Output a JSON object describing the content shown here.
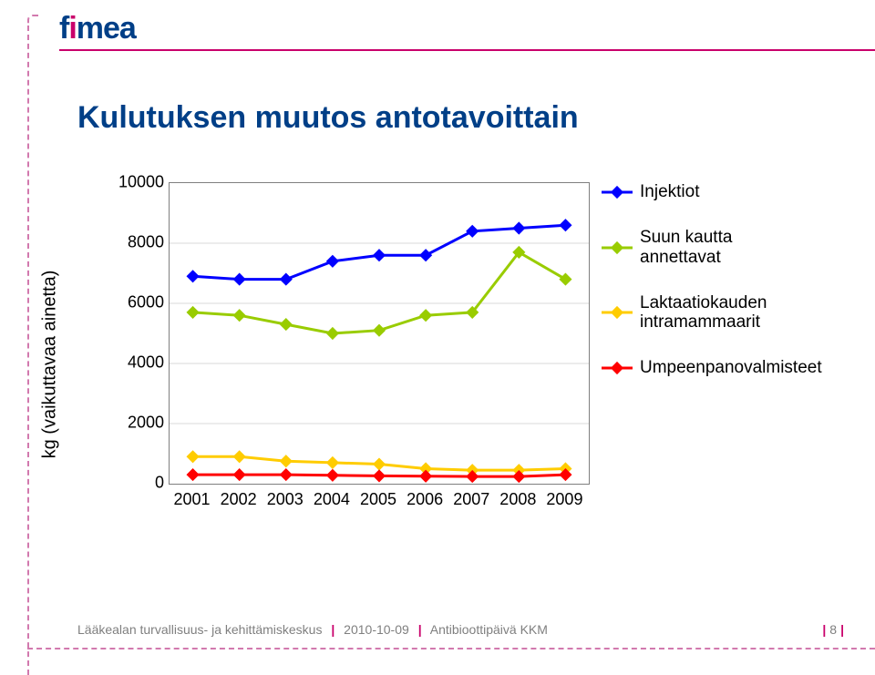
{
  "logo_text": "fimea",
  "title": "Kulutuksen muutos antotavoittain",
  "y_axis_title": "kg (vaikuttavaa ainetta)",
  "footer_left": "Lääkealan turvallisuus- ja kehittämiskeskus",
  "footer_date": "2010-10-09",
  "footer_right": "Antibioottipäivä KKM",
  "page_number": "8",
  "chart": {
    "type": "line",
    "background_color": "#ffffff",
    "grid_color": "#d9d9d9",
    "plot_border_color": "#7f7f7f",
    "x_categories": [
      "2001",
      "2002",
      "2003",
      "2004",
      "2005",
      "2006",
      "2007",
      "2008",
      "2009"
    ],
    "ylim": [
      0,
      10000
    ],
    "ytick_step": 2000,
    "y_ticks": [
      0,
      2000,
      4000,
      6000,
      8000,
      10000
    ],
    "label_fontsize": 18,
    "axis_title_fontsize": 20,
    "line_width": 3,
    "marker_style": "diamond",
    "marker_size": 10,
    "series": [
      {
        "name": "Injektiot",
        "color": "#0000ff",
        "data": [
          6900,
          6800,
          6800,
          7400,
          7600,
          7600,
          8400,
          8500,
          8600
        ]
      },
      {
        "name": "Suun kautta annettavat",
        "color": "#99cc00",
        "data": [
          5700,
          5600,
          5300,
          5000,
          5100,
          5600,
          5700,
          7700,
          6800
        ]
      },
      {
        "name": "Laktaatiokauden intramammaarit",
        "color": "#ffcc00",
        "data": [
          900,
          900,
          750,
          700,
          650,
          500,
          450,
          450,
          500
        ]
      },
      {
        "name": "Umpeenpanovalmisteet",
        "color": "#ff0000",
        "data": [
          300,
          300,
          300,
          280,
          260,
          250,
          240,
          240,
          300
        ]
      }
    ],
    "legend_fontsize": 19
  }
}
